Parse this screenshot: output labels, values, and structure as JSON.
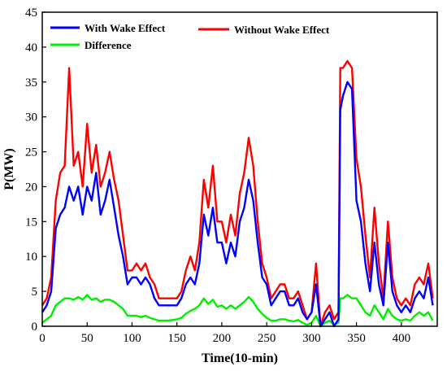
{
  "chart_data": {
    "type": "line",
    "xlabel": "Time(10-min)",
    "ylabel": "P(MW)",
    "xlim": [
      0,
      440
    ],
    "ylim": [
      0,
      45
    ],
    "xticks": [
      0,
      50,
      100,
      150,
      200,
      250,
      300,
      350,
      400
    ],
    "yticks": [
      0,
      5,
      10,
      15,
      20,
      25,
      30,
      35,
      40,
      45
    ],
    "grid": false,
    "legend_placement": "top-left",
    "series": [
      {
        "name": "With Wake Effect",
        "color": "#0000ff",
        "x": [
          0,
          5,
          10,
          15,
          20,
          25,
          30,
          35,
          40,
          45,
          50,
          55,
          60,
          65,
          70,
          75,
          80,
          85,
          90,
          95,
          100,
          105,
          110,
          115,
          120,
          125,
          130,
          135,
          140,
          145,
          150,
          155,
          160,
          165,
          170,
          175,
          180,
          185,
          190,
          195,
          200,
          205,
          210,
          215,
          220,
          225,
          230,
          235,
          240,
          245,
          250,
          255,
          260,
          265,
          270,
          275,
          280,
          285,
          290,
          295,
          300,
          305,
          310,
          315,
          320,
          325,
          330,
          332,
          335,
          340,
          345,
          350,
          355,
          360,
          365,
          370,
          375,
          380,
          385,
          390,
          395,
          400,
          405,
          410,
          415,
          420,
          425,
          430,
          435
        ],
        "values": [
          2,
          3,
          5,
          14,
          16,
          17,
          20,
          18,
          20,
          16,
          20,
          18,
          22,
          16,
          18,
          21,
          17,
          13,
          10,
          6,
          7,
          7,
          6,
          7,
          6,
          4,
          3,
          3,
          3,
          3,
          3,
          4,
          6,
          7,
          6,
          9,
          16,
          13,
          17,
          12,
          12,
          9,
          12,
          10,
          15,
          17,
          21,
          18,
          12,
          7,
          6,
          3,
          4,
          5,
          5,
          3,
          3,
          4,
          2,
          1,
          2,
          6,
          0,
          1,
          2,
          0,
          1,
          31,
          33,
          35,
          34,
          18,
          15,
          9,
          5,
          12,
          6,
          3,
          12,
          5,
          3,
          2,
          3,
          2,
          4,
          5,
          4,
          7,
          3
        ]
      },
      {
        "name": "Without Wake Effect",
        "color": "#ff0000",
        "x": [
          0,
          5,
          10,
          15,
          20,
          25,
          30,
          35,
          40,
          45,
          50,
          55,
          60,
          65,
          70,
          75,
          80,
          85,
          90,
          95,
          100,
          105,
          110,
          115,
          120,
          125,
          130,
          135,
          140,
          145,
          150,
          155,
          160,
          165,
          170,
          175,
          180,
          185,
          190,
          195,
          200,
          205,
          210,
          215,
          220,
          225,
          230,
          235,
          240,
          245,
          250,
          255,
          260,
          265,
          270,
          275,
          280,
          285,
          290,
          295,
          300,
          305,
          310,
          315,
          320,
          325,
          330,
          332,
          335,
          340,
          345,
          350,
          355,
          360,
          365,
          370,
          375,
          380,
          385,
          390,
          395,
          400,
          405,
          410,
          415,
          420,
          425,
          430,
          435
        ],
        "values": [
          3,
          4,
          7,
          18,
          22,
          23,
          37,
          23,
          25,
          20,
          29,
          22,
          26,
          20,
          22,
          25,
          21,
          18,
          13,
          8,
          8,
          9,
          8,
          9,
          7,
          6,
          4,
          4,
          4,
          4,
          4,
          5,
          8,
          10,
          8,
          12,
          21,
          17,
          23,
          15,
          15,
          12,
          16,
          13,
          19,
          22,
          27,
          23,
          15,
          9,
          7,
          4,
          5,
          6,
          6,
          4,
          4,
          5,
          3,
          1,
          2,
          9,
          0,
          2,
          3,
          1,
          2,
          37,
          37,
          38,
          37,
          24,
          20,
          13,
          7,
          17,
          9,
          4,
          15,
          7,
          4,
          3,
          4,
          3,
          6,
          7,
          6,
          9,
          4
        ]
      },
      {
        "name": "Difference",
        "color": "#00ee00",
        "x": [
          0,
          5,
          10,
          15,
          20,
          25,
          30,
          35,
          40,
          45,
          50,
          55,
          60,
          65,
          70,
          75,
          80,
          85,
          90,
          95,
          100,
          105,
          110,
          115,
          120,
          125,
          130,
          135,
          140,
          145,
          150,
          155,
          160,
          165,
          170,
          175,
          180,
          185,
          190,
          195,
          200,
          205,
          210,
          215,
          220,
          225,
          230,
          235,
          240,
          245,
          250,
          255,
          260,
          265,
          270,
          275,
          280,
          285,
          290,
          295,
          300,
          305,
          310,
          315,
          320,
          325,
          330,
          332,
          335,
          340,
          345,
          350,
          355,
          360,
          365,
          370,
          375,
          380,
          385,
          390,
          395,
          400,
          405,
          410,
          415,
          420,
          425,
          430,
          435
        ],
        "values": [
          0.5,
          1,
          1.5,
          3,
          3.5,
          4,
          4,
          3.8,
          4.2,
          3.8,
          4.5,
          3.8,
          4,
          3.5,
          3.8,
          3.8,
          3.5,
          3,
          2.5,
          1.5,
          1.5,
          1.5,
          1.3,
          1.5,
          1.2,
          1,
          0.8,
          0.8,
          0.8,
          0.9,
          1,
          1.2,
          1.8,
          2.2,
          2.5,
          3,
          4,
          3.2,
          3.8,
          2.8,
          3,
          2.5,
          3,
          2.5,
          3,
          3.5,
          4.2,
          3.5,
          2.5,
          1.8,
          1.2,
          0.8,
          0.8,
          1,
          1,
          0.8,
          0.7,
          0.9,
          0.5,
          0.2,
          0.5,
          1.5,
          0,
          0.5,
          0.8,
          0.2,
          0.5,
          4,
          4,
          4.5,
          4,
          4,
          3,
          2,
          1.5,
          3,
          2,
          1,
          2.5,
          1.5,
          1,
          0.8,
          1,
          0.8,
          1.5,
          2,
          1.5,
          2,
          0.8
        ]
      }
    ]
  }
}
